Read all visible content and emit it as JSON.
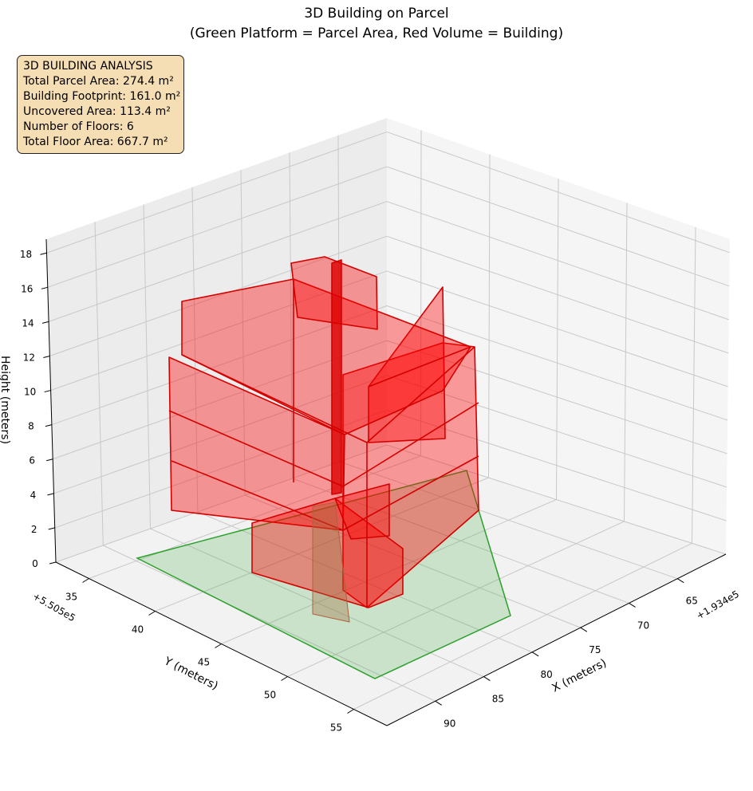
{
  "chart_data": {
    "type": "3d-bar",
    "title": "3D Building on Parcel",
    "subtitle": "(Green Platform = Parcel Area, Red Volume = Building)",
    "xlabel": "X (meters)",
    "ylabel": "Y (meters)",
    "zlabel": "Height (meters)",
    "x_offset": "+1.934e5",
    "y_offset": "+5.505e5",
    "xlim": [
      60,
      95
    ],
    "ylim": [
      32.5,
      57.5
    ],
    "zlim": [
      0,
      18.8
    ],
    "xticks": [
      65,
      70,
      75,
      80,
      85,
      90
    ],
    "yticks": [
      35,
      40,
      45,
      50,
      55
    ],
    "zticks": [
      0,
      2,
      4,
      6,
      8,
      10,
      12,
      14,
      16,
      18
    ],
    "grid": true,
    "parcel_color": "#2ca02c",
    "building_color": "#ff0000"
  },
  "info": {
    "heading": "3D BUILDING ANALYSIS",
    "lines": [
      "Total Parcel Area: 274.4 m²",
      "Building Footprint: 161.0 m²",
      "Uncovered Area: 113.4 m²",
      "Number of Floors: 6",
      "Total Floor Area: 667.7 m²"
    ]
  }
}
